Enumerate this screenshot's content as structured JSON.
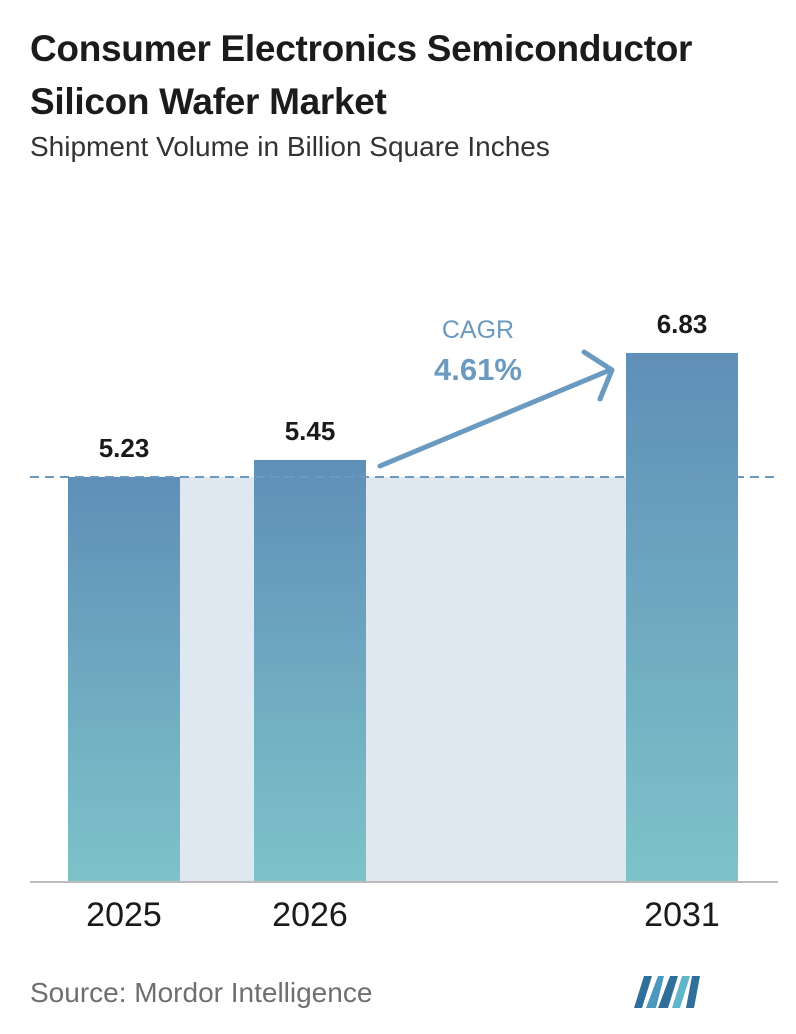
{
  "header": {
    "title": "Consumer Electronics Semiconductor Silicon Wafer Market",
    "subtitle": "Shipment Volume in Billion Square Inches"
  },
  "footer": {
    "source": "Source:  Mordor Intelligence",
    "logo_icon": "mordor-intelligence-logo-icon"
  },
  "colors": {
    "bar_top": "#5f8fb8",
    "bar_bottom": "#7dc3c9",
    "shaded_band": "#dfe8f0",
    "accent": "#6b9ac0",
    "baseline": "#bbbbbb"
  },
  "chart_data": {
    "type": "bar",
    "categories": [
      "2025",
      "2026",
      "2031"
    ],
    "values": [
      5.23,
      5.45,
      6.83
    ],
    "value_labels": [
      "5.23",
      "5.45",
      "6.83"
    ],
    "reference_line_value": 5.23,
    "annotation": {
      "label": "CAGR",
      "value": "4.61%"
    },
    "xlabel": "",
    "ylabel": "",
    "grid": false,
    "legend": "none"
  }
}
